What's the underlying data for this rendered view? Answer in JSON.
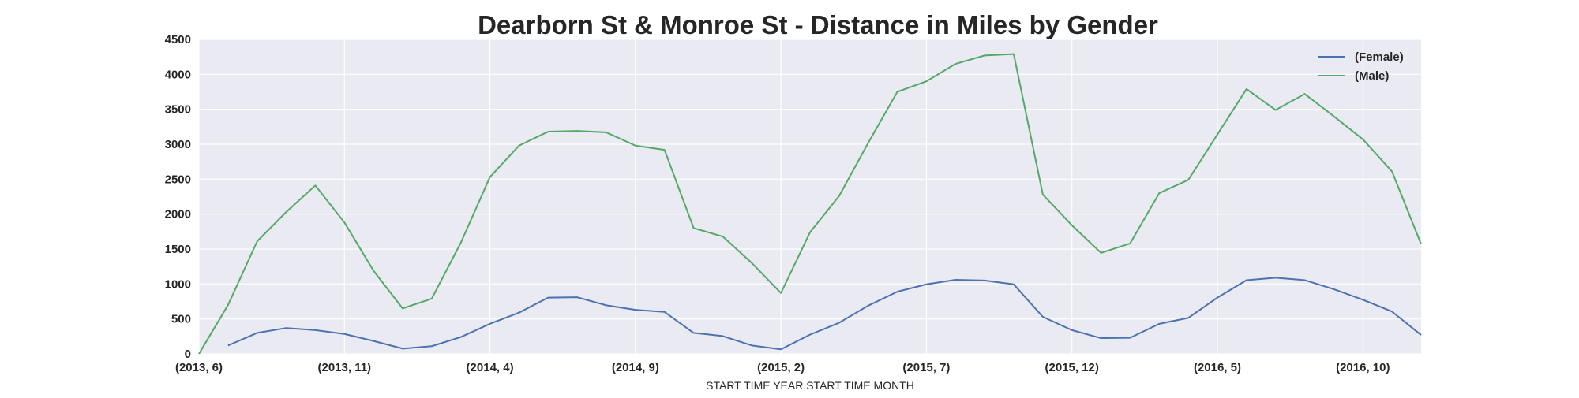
{
  "colors": {
    "plot_background": "#EAEAF2",
    "grid": "#FFFFFF",
    "text": "#262626",
    "female": "#4C72B0",
    "male": "#55A868"
  },
  "chart_data": {
    "type": "line",
    "title": "Dearborn St & Monroe St - Distance in Miles by Gender",
    "xlabel": "START TIME YEAR,START TIME MONTH",
    "ylabel": "",
    "ylim": [
      0,
      4500
    ],
    "yticks": [
      0,
      500,
      1000,
      1500,
      2000,
      2500,
      3000,
      3500,
      4000,
      4500
    ],
    "grid": true,
    "legend_position": "top-right",
    "x": [
      "(2013, 6)",
      "(2013, 7)",
      "(2013, 8)",
      "(2013, 9)",
      "(2013, 10)",
      "(2013, 11)",
      "(2013, 12)",
      "(2014, 1)",
      "(2014, 2)",
      "(2014, 3)",
      "(2014, 4)",
      "(2014, 5)",
      "(2014, 6)",
      "(2014, 7)",
      "(2014, 8)",
      "(2014, 9)",
      "(2014, 10)",
      "(2014, 11)",
      "(2014, 12)",
      "(2015, 1)",
      "(2015, 2)",
      "(2015, 3)",
      "(2015, 4)",
      "(2015, 5)",
      "(2015, 6)",
      "(2015, 7)",
      "(2015, 8)",
      "(2015, 9)",
      "(2015, 10)",
      "(2015, 11)",
      "(2015, 12)",
      "(2016, 1)",
      "(2016, 2)",
      "(2016, 3)",
      "(2016, 4)",
      "(2016, 5)",
      "(2016, 6)",
      "(2016, 7)",
      "(2016, 8)",
      "(2016, 9)",
      "(2016, 10)",
      "(2016, 11)",
      "(2016, 12)"
    ],
    "xtick_labels": [
      "(2013, 6)",
      "(2013, 11)",
      "(2014, 4)",
      "(2014, 9)",
      "(2015, 2)",
      "(2015, 7)",
      "(2015, 12)",
      "(2016, 5)",
      "(2016, 10)"
    ],
    "series": [
      {
        "name": "(Female)",
        "color": "#4C72B0",
        "values": [
          null,
          120,
          300,
          370,
          340,
          285,
          185,
          75,
          110,
          240,
          430,
          590,
          805,
          810,
          695,
          630,
          600,
          300,
          255,
          120,
          65,
          275,
          445,
          690,
          890,
          995,
          1060,
          1050,
          995,
          530,
          340,
          225,
          230,
          430,
          515,
          805,
          1055,
          1090,
          1055,
          925,
          775,
          605,
          270
        ]
      },
      {
        "name": "(Male)",
        "color": "#55A868",
        "values": [
          0,
          700,
          1610,
          2030,
          2410,
          1880,
          1190,
          650,
          790,
          1590,
          2530,
          2980,
          3180,
          3190,
          3170,
          2980,
          2920,
          1800,
          1680,
          1300,
          870,
          1740,
          2260,
          3020,
          3750,
          3900,
          4150,
          4270,
          4290,
          2280,
          1840,
          1445,
          1580,
          2300,
          2490,
          3140,
          3790,
          3490,
          3720,
          3400,
          3070,
          2610,
          1570
        ]
      }
    ]
  }
}
